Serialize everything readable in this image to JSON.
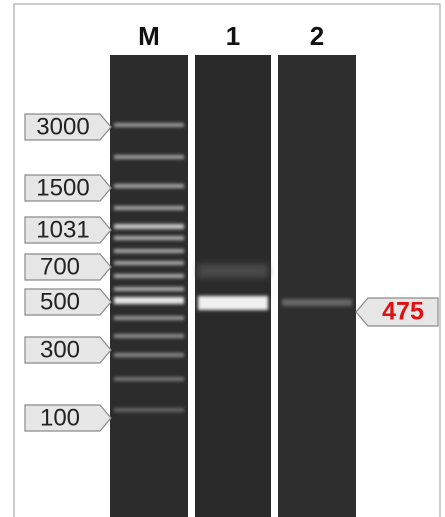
{
  "lanes": [
    {
      "label": "M"
    },
    {
      "label": "1"
    },
    {
      "label": "2"
    }
  ],
  "ladder_labels": [
    "3000",
    "1500",
    "1031",
    "700",
    "500",
    "300",
    "100"
  ],
  "product_label": "475"
}
